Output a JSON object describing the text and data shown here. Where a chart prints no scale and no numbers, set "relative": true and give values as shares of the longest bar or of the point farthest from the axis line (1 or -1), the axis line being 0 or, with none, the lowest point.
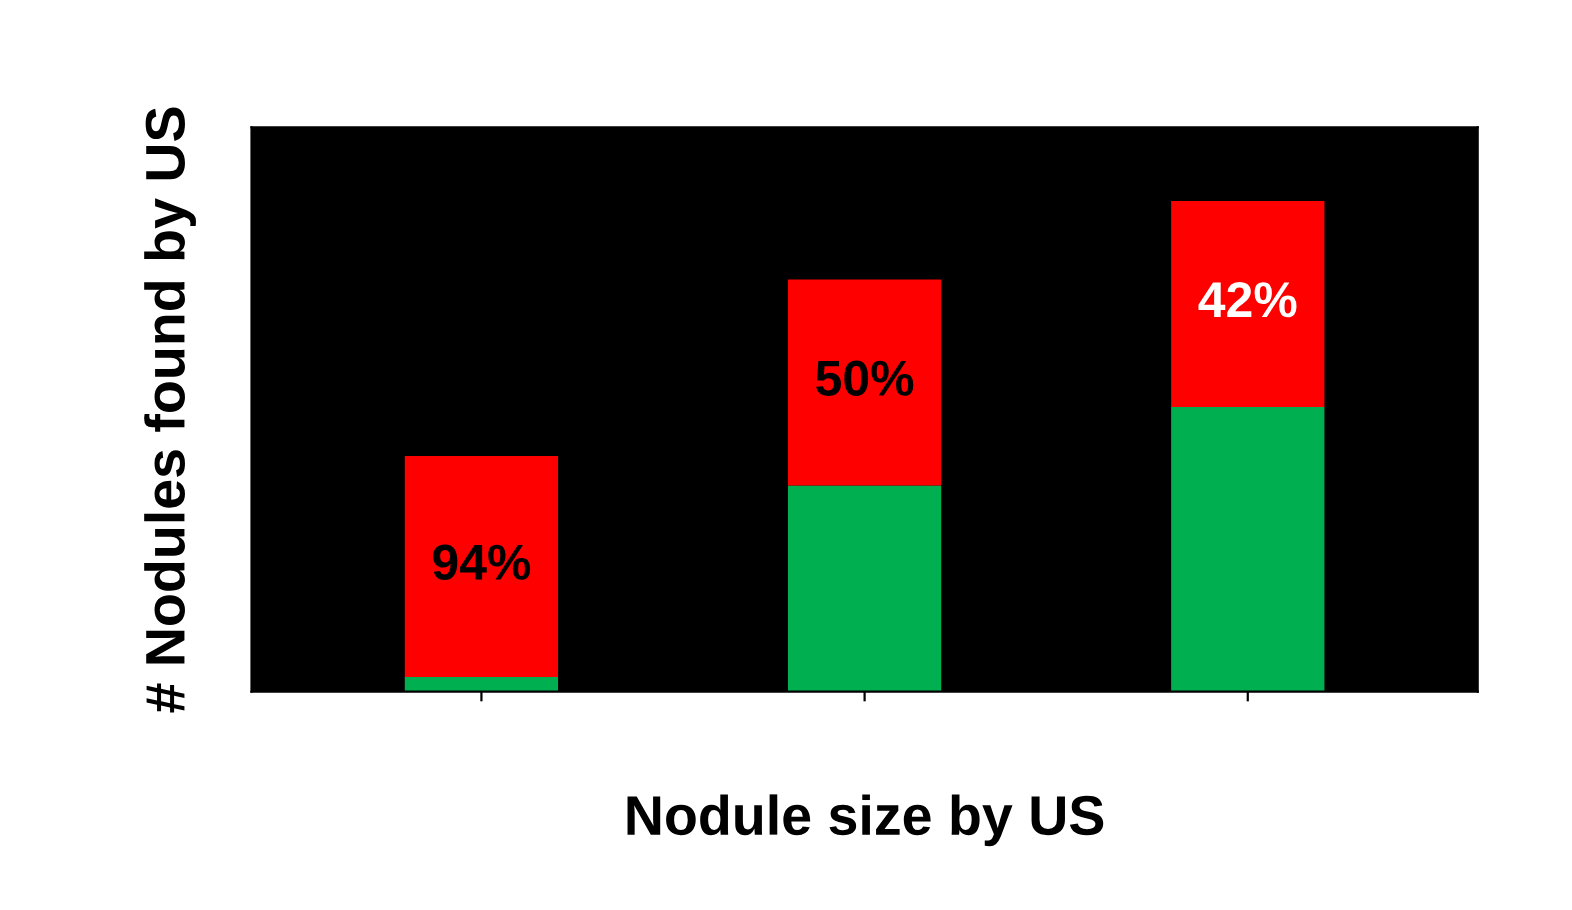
{
  "chart_data": {
    "type": "bar",
    "stacked": true,
    "relative": true,
    "xlabel": "Nodule size by US",
    "ylabel": "# Nodules found by US",
    "categories": [
      null,
      null,
      null
    ],
    "series": [
      {
        "color": "#00b050",
        "values": [
          0.03,
          0.42,
          0.58
        ]
      },
      {
        "color": "#ff0000",
        "values": [
          0.45,
          0.42,
          0.42
        ]
      }
    ],
    "annotations": [
      "94%",
      "50%",
      "42%"
    ]
  }
}
